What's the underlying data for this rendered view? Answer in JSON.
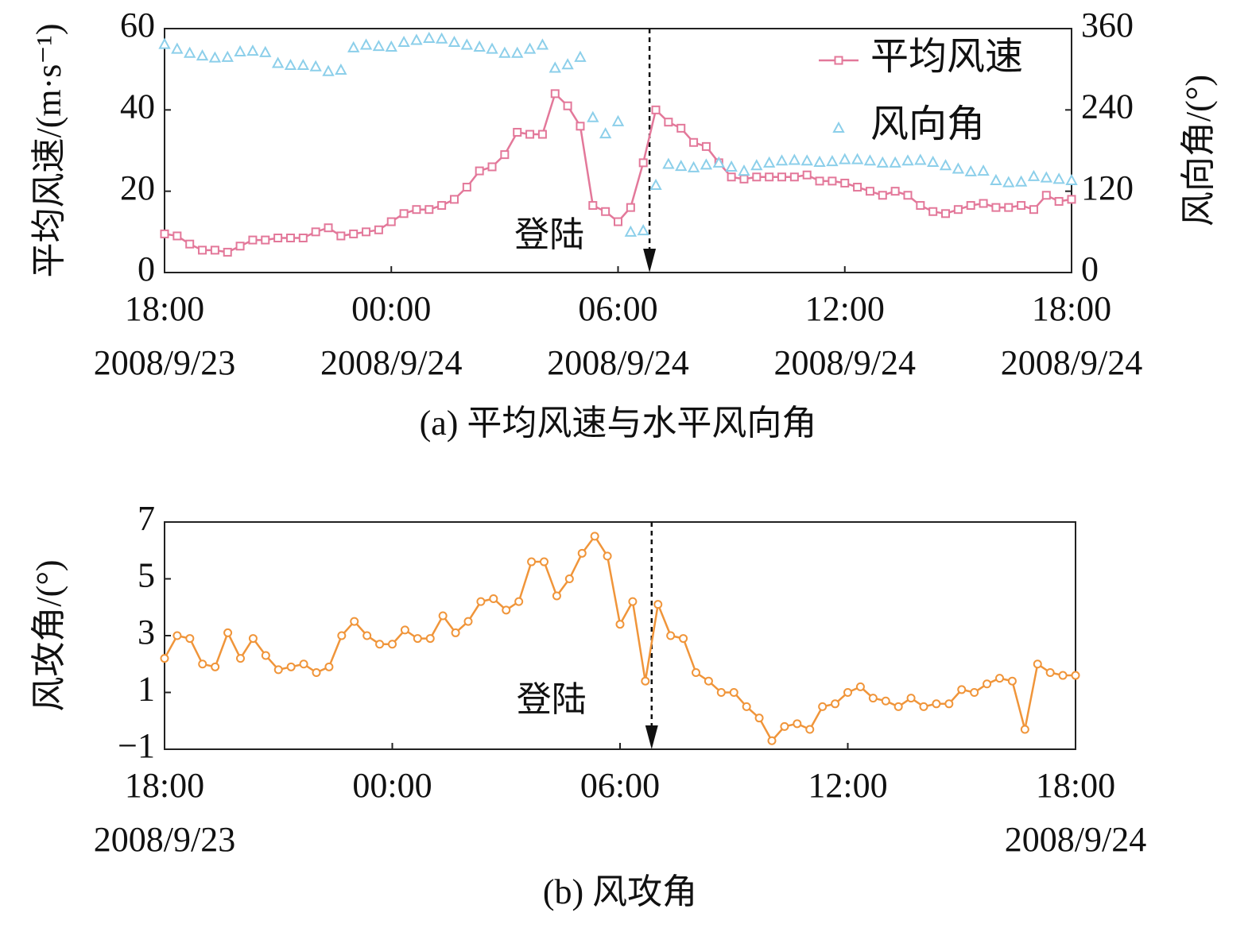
{
  "chart_data": [
    {
      "type": "line",
      "title": "(a) 平均风速与水平风向角",
      "ylabel": "平均风速/(m·s⁻¹)",
      "y2label": "风向角/(°)",
      "x": [
        "2008/9/23 18:00",
        "2008/9/23 18:20",
        "2008/9/23 18:40",
        "2008/9/23 19:00",
        "2008/9/23 19:20",
        "2008/9/23 19:40",
        "2008/9/23 20:00",
        "2008/9/23 20:20",
        "2008/9/23 20:40",
        "2008/9/23 21:00",
        "2008/9/23 21:20",
        "2008/9/23 21:40",
        "2008/9/23 22:00",
        "2008/9/23 22:20",
        "2008/9/23 22:40",
        "2008/9/23 23:00",
        "2008/9/23 23:20",
        "2008/9/23 23:40",
        "2008/9/24 00:00",
        "2008/9/24 00:20",
        "2008/9/24 00:40",
        "2008/9/24 01:00",
        "2008/9/24 01:20",
        "2008/9/24 01:40",
        "2008/9/24 02:00",
        "2008/9/24 02:20",
        "2008/9/24 02:40",
        "2008/9/24 03:00",
        "2008/9/24 03:20",
        "2008/9/24 03:40",
        "2008/9/24 04:00",
        "2008/9/24 04:20",
        "2008/9/24 04:40",
        "2008/9/24 05:00",
        "2008/9/24 05:20",
        "2008/9/24 05:40",
        "2008/9/24 06:00",
        "2008/9/24 06:20",
        "2008/9/24 06:40",
        "2008/9/24 07:00",
        "2008/9/24 07:20",
        "2008/9/24 07:40",
        "2008/9/24 08:00",
        "2008/9/24 08:20",
        "2008/9/24 08:40",
        "2008/9/24 09:00",
        "2008/9/24 09:20",
        "2008/9/24 09:40",
        "2008/9/24 10:00",
        "2008/9/24 10:20",
        "2008/9/24 10:40",
        "2008/9/24 11:00",
        "2008/9/24 11:20",
        "2008/9/24 11:40",
        "2008/9/24 12:00",
        "2008/9/24 12:20",
        "2008/9/24 12:40",
        "2008/9/24 13:00",
        "2008/9/24 13:20",
        "2008/9/24 13:40",
        "2008/9/24 14:00",
        "2008/9/24 14:20",
        "2008/9/24 14:40",
        "2008/9/24 15:00",
        "2008/9/24 15:20",
        "2008/9/24 15:40",
        "2008/9/24 16:00",
        "2008/9/24 16:20",
        "2008/9/24 16:40",
        "2008/9/24 17:00",
        "2008/9/24 17:20",
        "2008/9/24 17:40",
        "2008/9/24 18:00"
      ],
      "series": [
        {
          "name": "平均风速",
          "color": "#e3789a",
          "marker": "square",
          "line": true,
          "values": [
            9.5,
            9,
            7,
            5.5,
            5.5,
            5,
            6.5,
            8,
            8,
            8.5,
            8.5,
            8.5,
            10,
            11,
            9,
            9.5,
            10,
            10.5,
            12.5,
            14.5,
            15.5,
            15.5,
            16.5,
            18,
            21,
            25,
            26,
            29,
            34.5,
            34,
            34,
            44,
            41,
            36,
            16.5,
            15,
            12.5,
            16,
            27,
            40,
            37,
            35.5,
            32,
            31,
            27,
            23.5,
            23,
            23.5,
            23.5,
            23.5,
            23.5,
            24,
            22.5,
            22.5,
            22,
            21,
            20,
            19,
            20,
            19,
            16.5,
            15,
            14.5,
            15.5,
            16.5,
            17,
            16,
            16,
            16.5,
            15.5,
            19,
            17.5,
            18
          ]
        },
        {
          "name": "风向角",
          "color": "#8ccfea",
          "marker": "triangle",
          "line": false,
          "axis": "y2",
          "values": [
            337,
            330,
            324,
            320,
            317,
            318,
            326,
            327,
            325,
            309,
            306,
            306,
            304,
            297,
            299,
            332,
            336,
            334,
            333,
            340,
            343,
            346,
            345,
            340,
            336,
            333,
            330,
            324,
            324,
            330,
            336,
            302,
            307,
            318,
            229,
            205,
            223,
            60,
            62,
            129,
            160,
            157,
            155,
            159,
            162,
            156,
            150,
            158,
            162,
            165,
            166,
            165,
            163,
            164,
            167,
            167,
            165,
            162,
            162,
            165,
            166,
            163,
            158,
            153,
            149,
            150,
            136,
            133,
            134,
            142,
            140,
            138,
            136
          ]
        }
      ],
      "xlim": [
        "2008/9/23 18:00",
        "2008/9/24 18:00"
      ],
      "xticks": [
        {
          "value": "2008/9/23 18:00",
          "label": "18:00\n2008/9/23"
        },
        {
          "value": "2008/9/24 00:00",
          "label": "00:00\n2008/9/24"
        },
        {
          "value": "2008/9/24 06:00",
          "label": "06:00\n2008/9/24"
        },
        {
          "value": "2008/9/24 12:00",
          "label": "12:00\n2008/9/24"
        },
        {
          "value": "2008/9/24 18:00",
          "label": "18:00\n2008/9/24"
        }
      ],
      "ylim": [
        0,
        60
      ],
      "yticks": [
        0,
        20,
        40,
        60
      ],
      "y2lim": [
        0,
        360
      ],
      "y2ticks": [
        0,
        120,
        240,
        360
      ],
      "legend": "upper right",
      "annotations": [
        {
          "text": "登陆",
          "x": "2008/9/24 06:50"
        }
      ]
    },
    {
      "type": "line",
      "title": "(b) 风攻角",
      "ylabel": "风攻角/(°)",
      "x": [
        "2008/9/23 18:00",
        "2008/9/23 18:20",
        "2008/9/23 18:40",
        "2008/9/23 19:00",
        "2008/9/23 19:20",
        "2008/9/23 19:40",
        "2008/9/23 20:00",
        "2008/9/23 20:20",
        "2008/9/23 20:40",
        "2008/9/23 21:00",
        "2008/9/23 21:20",
        "2008/9/23 21:40",
        "2008/9/23 22:00",
        "2008/9/23 22:20",
        "2008/9/23 22:40",
        "2008/9/23 23:00",
        "2008/9/23 23:20",
        "2008/9/23 23:40",
        "2008/9/24 00:00",
        "2008/9/24 00:20",
        "2008/9/24 00:40",
        "2008/9/24 01:00",
        "2008/9/24 01:20",
        "2008/9/24 01:40",
        "2008/9/24 02:00",
        "2008/9/24 02:20",
        "2008/9/24 02:40",
        "2008/9/24 03:00",
        "2008/9/24 03:20",
        "2008/9/24 03:40",
        "2008/9/24 04:00",
        "2008/9/24 04:20",
        "2008/9/24 04:40",
        "2008/9/24 05:00",
        "2008/9/24 05:20",
        "2008/9/24 05:40",
        "2008/9/24 06:00",
        "2008/9/24 06:20",
        "2008/9/24 06:40",
        "2008/9/24 07:00",
        "2008/9/24 07:20",
        "2008/9/24 07:40",
        "2008/9/24 08:00",
        "2008/9/24 08:20",
        "2008/9/24 08:40",
        "2008/9/24 09:00",
        "2008/9/24 09:20",
        "2008/9/24 09:40",
        "2008/9/24 10:00",
        "2008/9/24 10:20",
        "2008/9/24 10:40",
        "2008/9/24 11:00",
        "2008/9/24 11:20",
        "2008/9/24 11:40",
        "2008/9/24 12:00",
        "2008/9/24 12:20",
        "2008/9/24 12:40",
        "2008/9/24 13:00",
        "2008/9/24 13:20",
        "2008/9/24 13:40",
        "2008/9/24 14:00",
        "2008/9/24 14:20",
        "2008/9/24 14:40",
        "2008/9/24 15:00",
        "2008/9/24 15:20",
        "2008/9/24 15:40",
        "2008/9/24 16:00",
        "2008/9/24 16:20",
        "2008/9/24 16:40",
        "2008/9/24 17:00",
        "2008/9/24 17:20",
        "2008/9/24 17:40",
        "2008/9/24 18:00"
      ],
      "series": [
        {
          "name": "风攻角",
          "color": "#f0953a",
          "marker": "circle",
          "line": true,
          "values": [
            2.2,
            3,
            2.9,
            2,
            1.9,
            3.1,
            2.2,
            2.9,
            2.3,
            1.8,
            1.9,
            2,
            1.7,
            1.9,
            3,
            3.5,
            3,
            2.7,
            2.7,
            3.2,
            2.9,
            2.9,
            3.7,
            3.1,
            3.5,
            4.2,
            4.3,
            3.9,
            4.2,
            5.6,
            5.6,
            4.4,
            5,
            5.9,
            6.5,
            5.8,
            3.4,
            4.2,
            1.4,
            4.1,
            3,
            2.9,
            1.7,
            1.4,
            1,
            1,
            0.5,
            0.1,
            -0.7,
            -0.2,
            -0.1,
            -0.3,
            0.5,
            0.6,
            1,
            1.2,
            0.8,
            0.7,
            0.5,
            0.8,
            0.5,
            0.6,
            0.6,
            1.1,
            1,
            1.3,
            1.5,
            1.4,
            -0.3,
            2,
            1.7,
            1.6,
            1.6
          ]
        }
      ],
      "xlim": [
        "2008/9/23 18:00",
        "2008/9/24 18:00"
      ],
      "xticks": [
        {
          "value": "2008/9/23 18:00",
          "label": "18:00\n2008/9/23"
        },
        {
          "value": "2008/9/24 00:00",
          "label": "00:00"
        },
        {
          "value": "2008/9/24 06:00",
          "label": "06:00"
        },
        {
          "value": "2008/9/24 12:00",
          "label": "12:00"
        },
        {
          "value": "2008/9/24 18:00",
          "label": "18:00\n2008/9/24"
        }
      ],
      "ylim": [
        -1,
        7
      ],
      "yticks": [
        {
          "value": -1,
          "label": "−1"
        },
        1,
        3,
        5,
        7
      ],
      "annotations": [
        {
          "text": "登陆",
          "x": "2008/9/24 06:50"
        }
      ]
    }
  ]
}
